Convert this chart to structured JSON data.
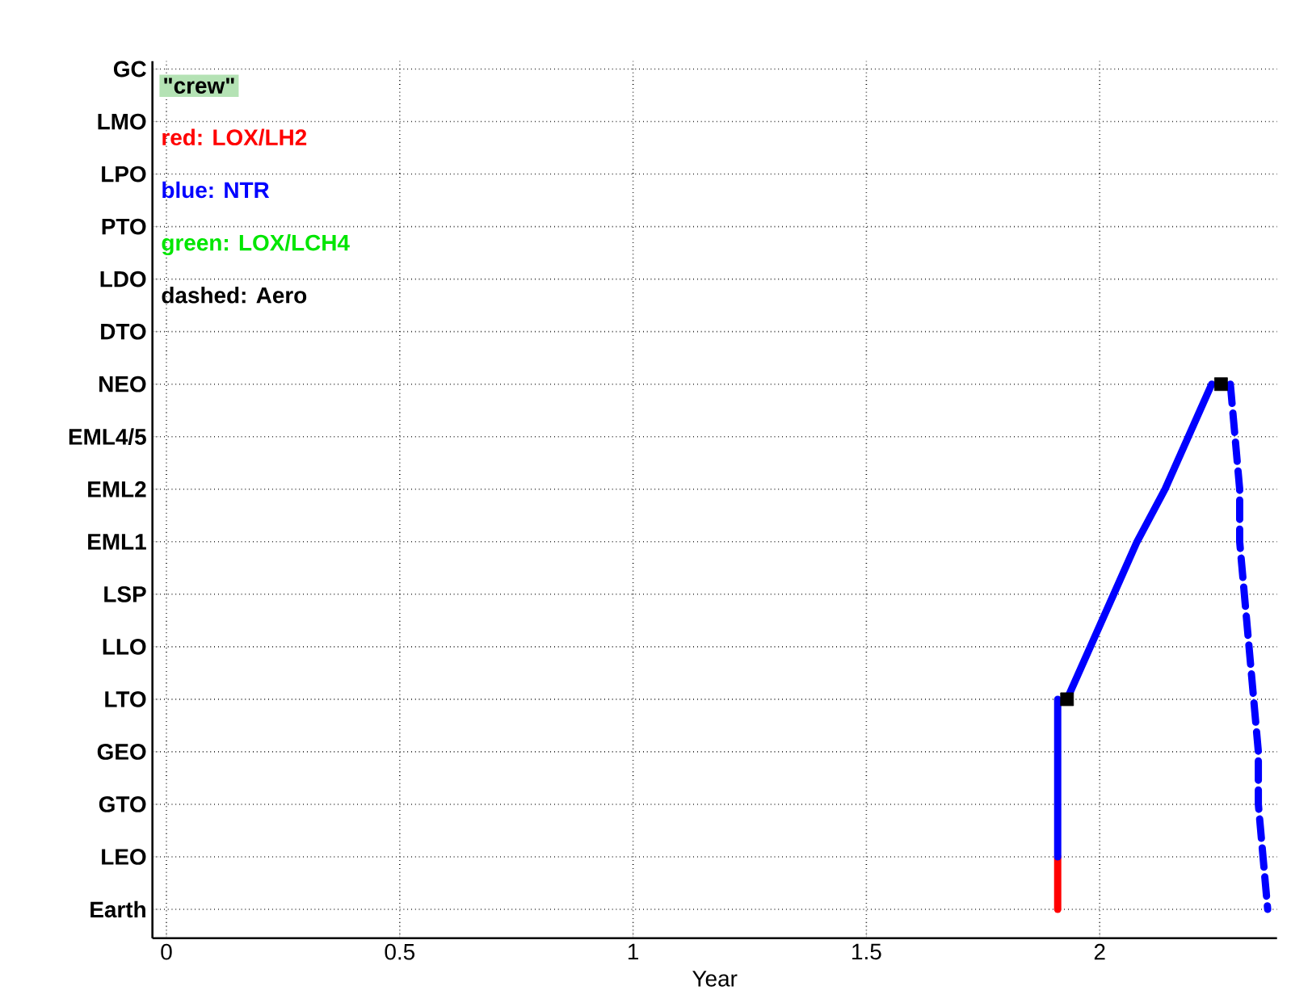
{
  "chart_data": {
    "type": "line",
    "orientation": "horizontal",
    "xlabel": "Year",
    "xlim": [
      -0.03,
      2.38
    ],
    "xticks": [
      0,
      0.5,
      1,
      1.5,
      2
    ],
    "categories": [
      "GC",
      "LMO",
      "LPO",
      "PTO",
      "LDO",
      "DTO",
      "NEO",
      "EML4/5",
      "EML2",
      "EML1",
      "LSP",
      "LLO",
      "LTO",
      "GEO",
      "GTO",
      "LEO",
      "Earth"
    ],
    "grid": true,
    "marker": "none",
    "series": [
      {
        "color": "#ff0000",
        "values": [
          null,
          null,
          null,
          null,
          null,
          null,
          null,
          null,
          null,
          null,
          null,
          null,
          null,
          null,
          null,
          1.91,
          1.91
        ],
        "line_style": "solid"
      },
      {
        "color": "#0000ff",
        "values": [
          null,
          null,
          null,
          null,
          null,
          null,
          null,
          null,
          null,
          null,
          null,
          null,
          1.91,
          1.91,
          1.91,
          1.91,
          null
        ],
        "line_style": "solid"
      },
      {
        "color": "#0000ff",
        "values": [
          null,
          null,
          null,
          null,
          null,
          null,
          2.24,
          2.19,
          2.14,
          2.08,
          2.03,
          1.98,
          1.93,
          null,
          null,
          null,
          null
        ],
        "line_style": "solid"
      },
      {
        "color": "#0000ff",
        "values": [
          null,
          null,
          null,
          null,
          null,
          null,
          2.28,
          2.29,
          2.3,
          2.3,
          2.31,
          2.32,
          2.33,
          2.34,
          2.34,
          2.35,
          2.36
        ],
        "line_style": "dashed"
      },
      {
        "color": "#000000",
        "type": "scatter",
        "marker": "square",
        "values": [
          null,
          null,
          null,
          null,
          null,
          null,
          2.26,
          null,
          null,
          null,
          null,
          null,
          1.93,
          null,
          null,
          null,
          null
        ]
      }
    ],
    "annotations": [
      "\"crew\"",
      "red: LOX/LH2",
      "blue: NTR",
      "green: LOX/LCH4",
      "dashed: Aero"
    ]
  }
}
